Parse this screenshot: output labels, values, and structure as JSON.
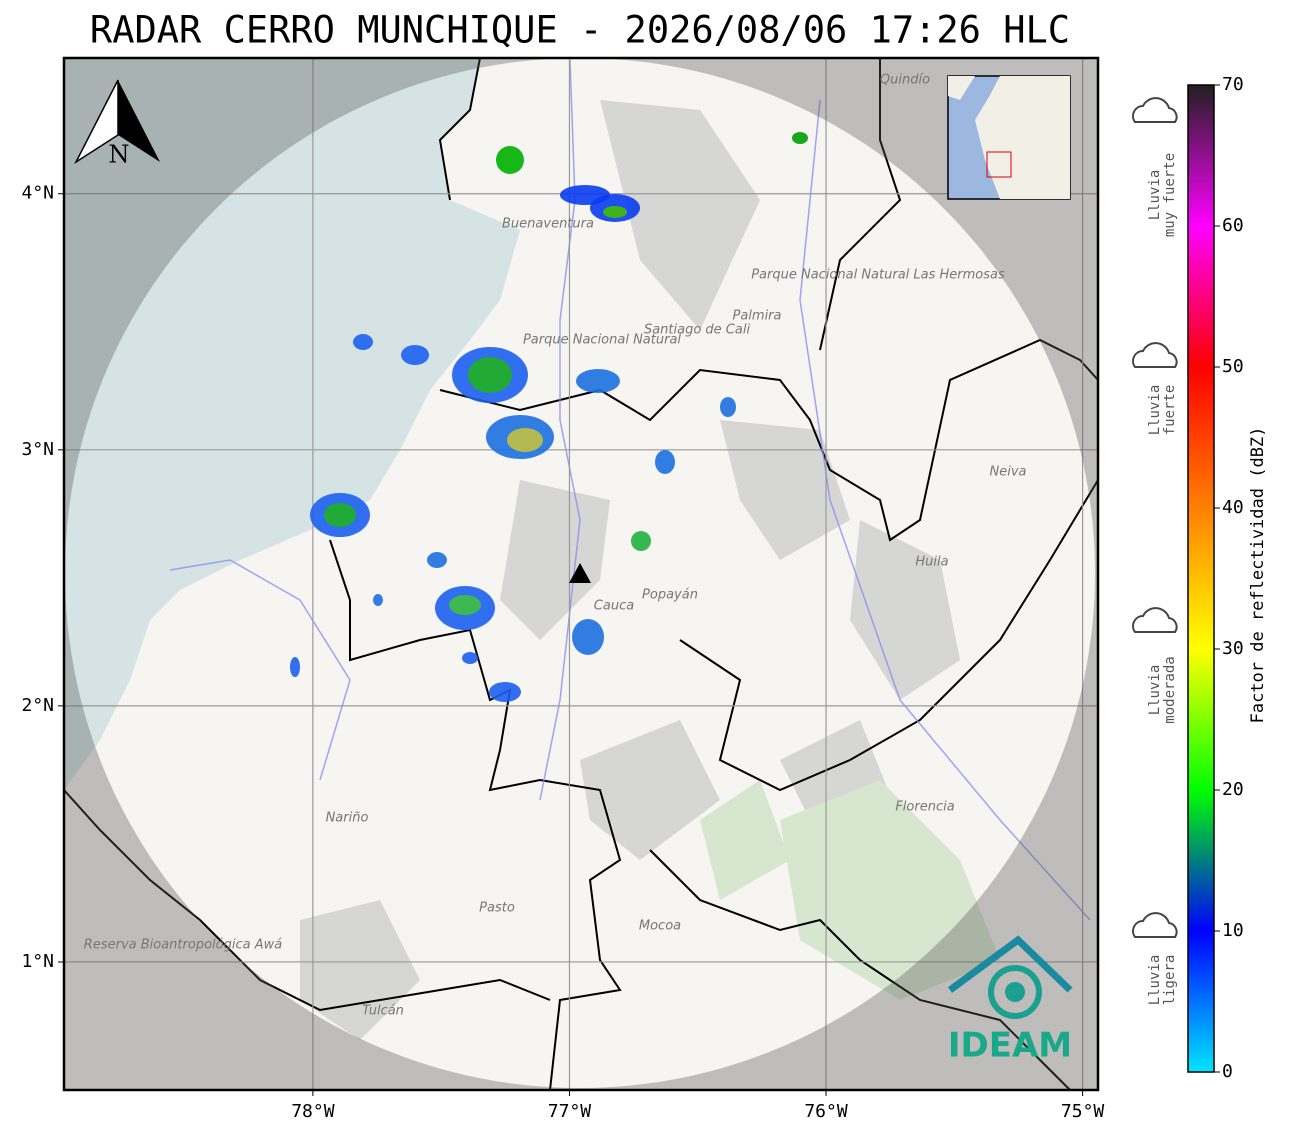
{
  "title": "RADAR CERRO MUNCHIQUE - 2026/08/06 17:26 HLC",
  "map": {
    "xlim": [
      -78.97,
      -74.94
    ],
    "ylim": [
      0.5,
      4.53
    ],
    "xticks": [
      {
        "value": -78,
        "label": "78°W"
      },
      {
        "value": -77,
        "label": "77°W"
      },
      {
        "value": -76,
        "label": "76°W"
      },
      {
        "value": -75,
        "label": "75°W"
      }
    ],
    "yticks": [
      {
        "value": 1,
        "label": "1°N"
      },
      {
        "value": 2,
        "label": "2°N"
      },
      {
        "value": 3,
        "label": "3°N"
      },
      {
        "value": 4,
        "label": "4°N"
      }
    ],
    "grid": true,
    "north_label": "N",
    "places": [
      "Buenaventura",
      "Santiago de Cali",
      "Palmira",
      "Parque Nacional Natural",
      "Parque Nacional Natural Las Hermosas",
      "Neiva",
      "Huila",
      "Popayán",
      "Cauca",
      "Nariño",
      "Pasto",
      "Mocoa",
      "Florencia",
      "Reserva Bioantropológica Awá",
      "Tulcán",
      "Quindío"
    ]
  },
  "colorbar": {
    "label": "Factor de reflectividad (dBZ)",
    "lim": [
      0,
      70
    ],
    "ticks": [
      0,
      10,
      20,
      30,
      40,
      50,
      60,
      70
    ],
    "colors": [
      "#00e5ff",
      "#0000ff",
      "#00ff00",
      "#ffff00",
      "#ff8000",
      "#ff0000",
      "#ff00ff",
      "#202020"
    ]
  },
  "rain_legend": [
    [
      "Lluvia",
      "muy fuerte"
    ],
    [
      "Lluvia",
      "fuerte"
    ],
    [
      "Lluvia",
      "moderada"
    ],
    [
      "Lluvia",
      "ligera"
    ]
  ],
  "logo": "IDEAM"
}
